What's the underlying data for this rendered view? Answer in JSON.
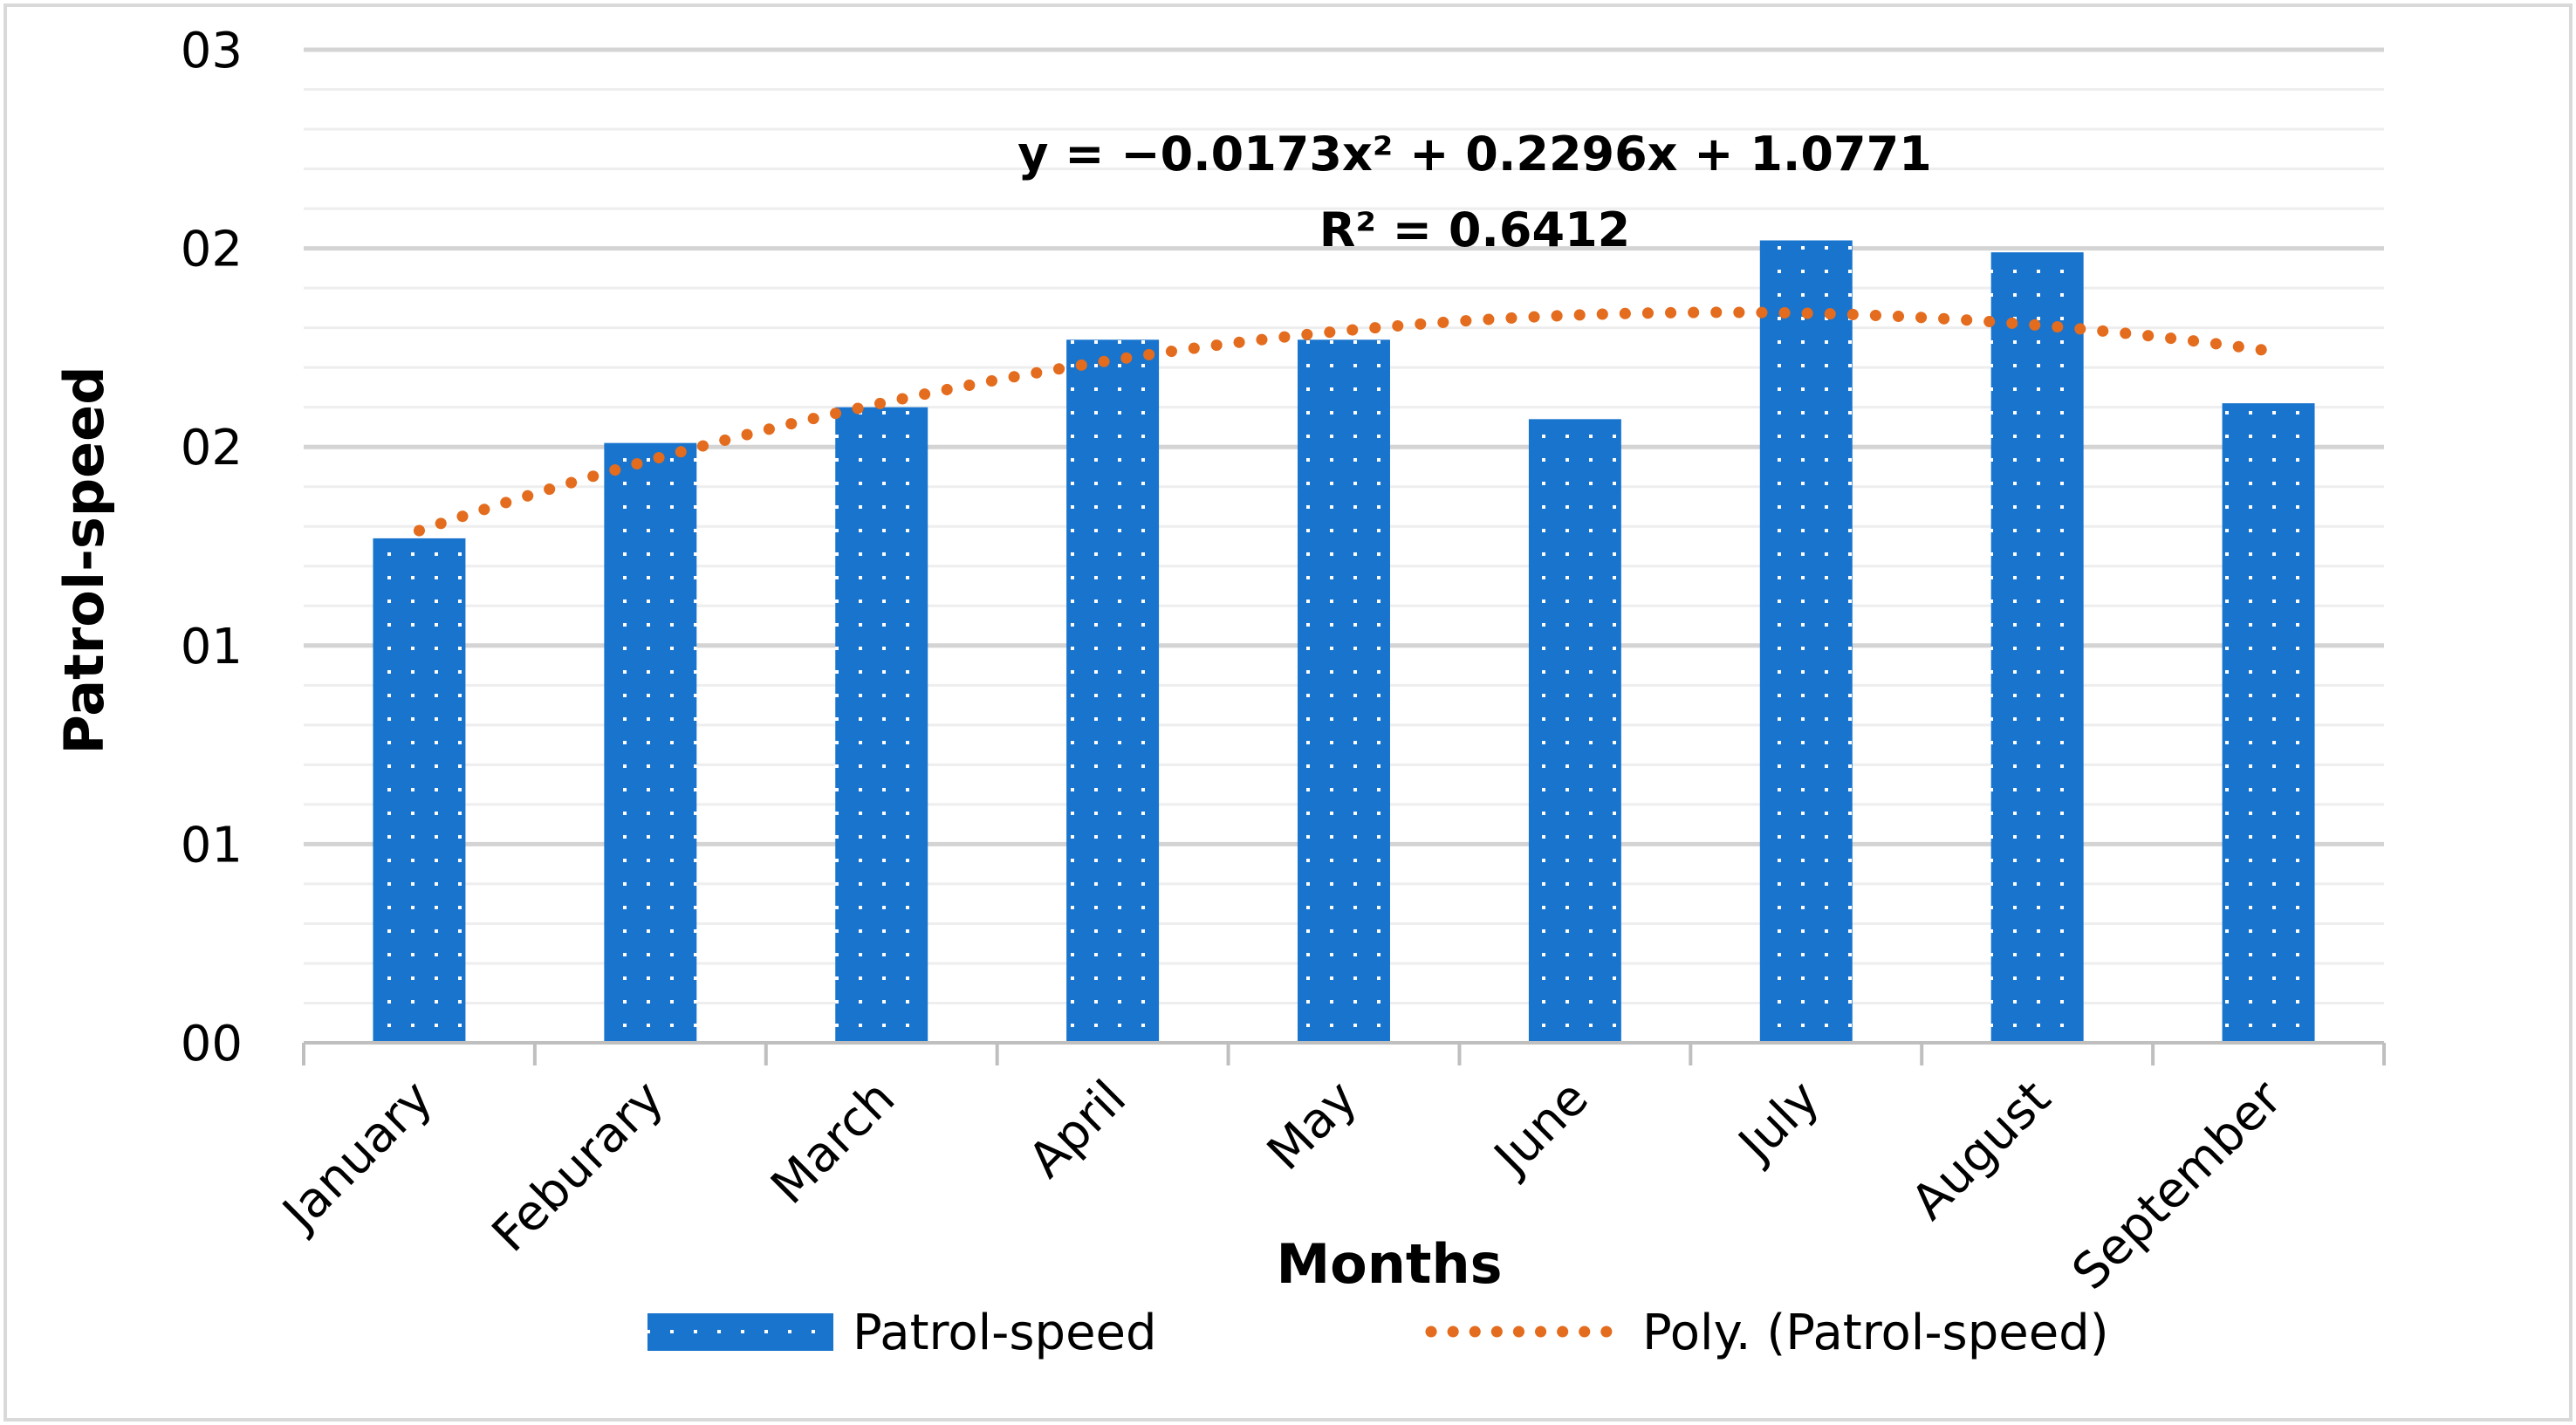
{
  "chart_data": {
    "type": "bar",
    "title": "",
    "xlabel": "Months",
    "ylabel": "Patrol-speed",
    "categories": [
      "January",
      "Feburary",
      "March",
      "April",
      "May",
      "June",
      "July",
      "August",
      "September"
    ],
    "series": [
      {
        "name": "Patrol-speed",
        "values": [
          1.27,
          1.51,
          1.6,
          1.77,
          1.77,
          1.57,
          2.02,
          1.99,
          1.61
        ]
      }
    ],
    "ylim": [
      0,
      2.5
    ],
    "y_ticks": [
      0,
      0.5,
      1.0,
      1.5,
      2.0,
      2.5
    ],
    "y_tick_labels": [
      "00",
      "01",
      "01",
      "02",
      "02",
      "03"
    ],
    "trendline": {
      "name": "Poly. (Patrol-speed)",
      "type": "polynomial",
      "order": 2,
      "coefficients": {
        "a": -0.0173,
        "b": 0.2296,
        "c": 1.0771
      },
      "equation_label": "y = −0.0173x² + 0.2296x + 1.0771",
      "r2_label": "R² = 0.6412"
    },
    "legend": [
      "Patrol-speed",
      "Poly. (Patrol-speed)"
    ],
    "legend_position": "bottom",
    "grid": true,
    "colors": {
      "bar": "#1874cd",
      "bar_dots": "#ffffff",
      "trend": "#e36c1e",
      "grid": "#d9d9d9",
      "axis": "#bfbfbf"
    }
  }
}
